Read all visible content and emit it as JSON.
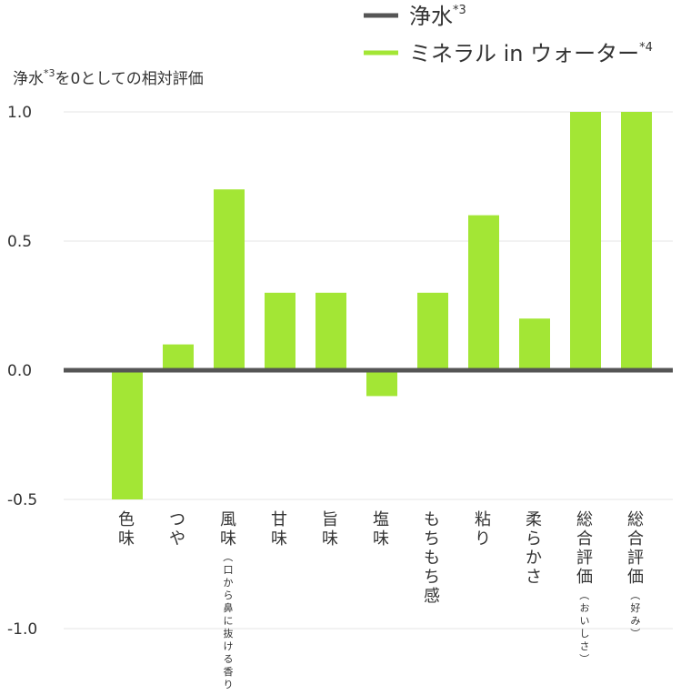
{
  "chart_data": {
    "type": "bar",
    "ylabel": "浄水*3を0としての相対評価",
    "ylim": [
      -1.0,
      1.0
    ],
    "yticks": [
      "1.0",
      "0.5",
      "0.0",
      "-0.5",
      "-1.0"
    ],
    "ytick_values": [
      1.0,
      0.5,
      0.0,
      -0.5,
      -1.0
    ],
    "grid": true,
    "legend_position": "top-right",
    "categories": [
      {
        "main": "色味",
        "sub": ""
      },
      {
        "main": "つや",
        "sub": ""
      },
      {
        "main": "風味",
        "sub": "（口から鼻に抜ける香り）"
      },
      {
        "main": "甘味",
        "sub": ""
      },
      {
        "main": "旨味",
        "sub": ""
      },
      {
        "main": "塩味",
        "sub": ""
      },
      {
        "main": "もちもち感",
        "sub": ""
      },
      {
        "main": "粘り",
        "sub": ""
      },
      {
        "main": "柔らかさ",
        "sub": ""
      },
      {
        "main": "総合評価",
        "sub": "（おいしさ）"
      },
      {
        "main": "総合評価",
        "sub": "（好み）"
      }
    ],
    "series": [
      {
        "name": "浄水*3",
        "color": "#555555",
        "values": [
          0,
          0,
          0,
          0,
          0,
          0,
          0,
          0,
          0,
          0,
          0
        ]
      },
      {
        "name": "ミネラル in ウォーター*4",
        "color": "#a3e635",
        "values": [
          -0.5,
          0.1,
          0.7,
          0.3,
          0.3,
          -0.1,
          0.3,
          0.6,
          0.2,
          1.0,
          1.0
        ]
      }
    ]
  }
}
